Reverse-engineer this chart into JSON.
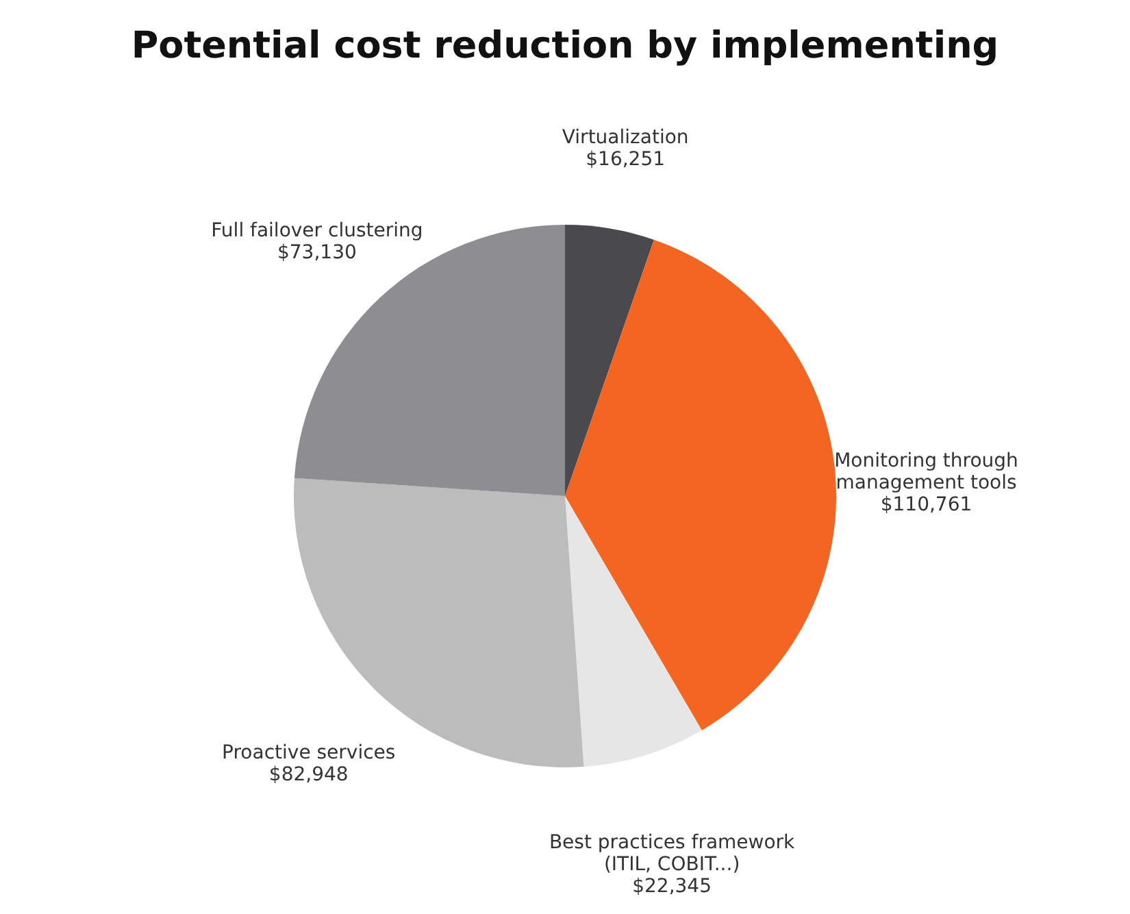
{
  "chart_data": {
    "type": "pie",
    "title": "Potential cost reduction by implementing",
    "categories": [
      "Virtualization",
      "Monitoring through management tools",
      "Best practices framework (ITIL, COBIT...)",
      "Proactive services",
      "Full failover clustering"
    ],
    "values": [
      16251,
      110761,
      22345,
      82948,
      73130
    ],
    "value_labels": [
      "$16,251",
      "$110,761",
      "$22,345",
      "$82,948",
      "$73,130"
    ],
    "colors": [
      "#4a4a4e",
      "#f26522",
      "#e6e6e6",
      "#bcbcbc",
      "#8e8e92"
    ],
    "legend": false
  }
}
